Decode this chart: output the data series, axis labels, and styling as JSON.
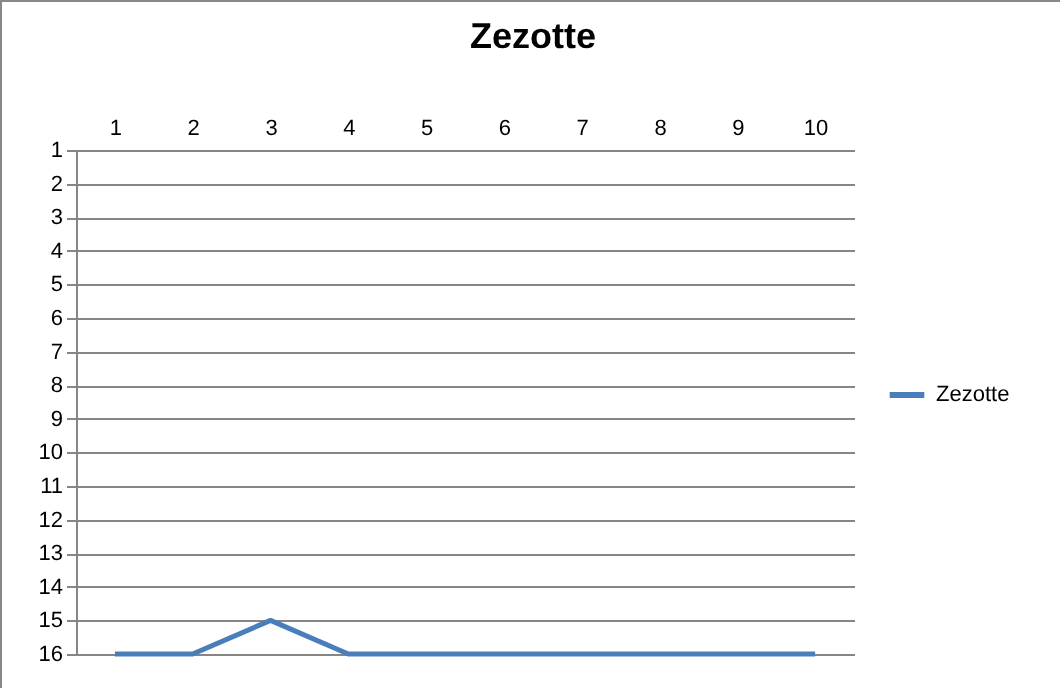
{
  "chart_data": {
    "type": "line",
    "title": "Zezotte",
    "categories": [
      "1",
      "2",
      "3",
      "4",
      "5",
      "6",
      "7",
      "8",
      "9",
      "10"
    ],
    "series": [
      {
        "name": "Zezotte",
        "color": "#4a7ebb",
        "values": [
          16,
          16,
          15,
          16,
          16,
          16,
          16,
          16,
          16,
          16
        ]
      }
    ],
    "ylim": [
      16,
      1
    ],
    "yticks": [
      1,
      2,
      3,
      4,
      5,
      6,
      7,
      8,
      9,
      10,
      11,
      12,
      13,
      14,
      15,
      16
    ],
    "grid": "y",
    "legend": "right",
    "marker": "none",
    "line_style": "solid"
  }
}
